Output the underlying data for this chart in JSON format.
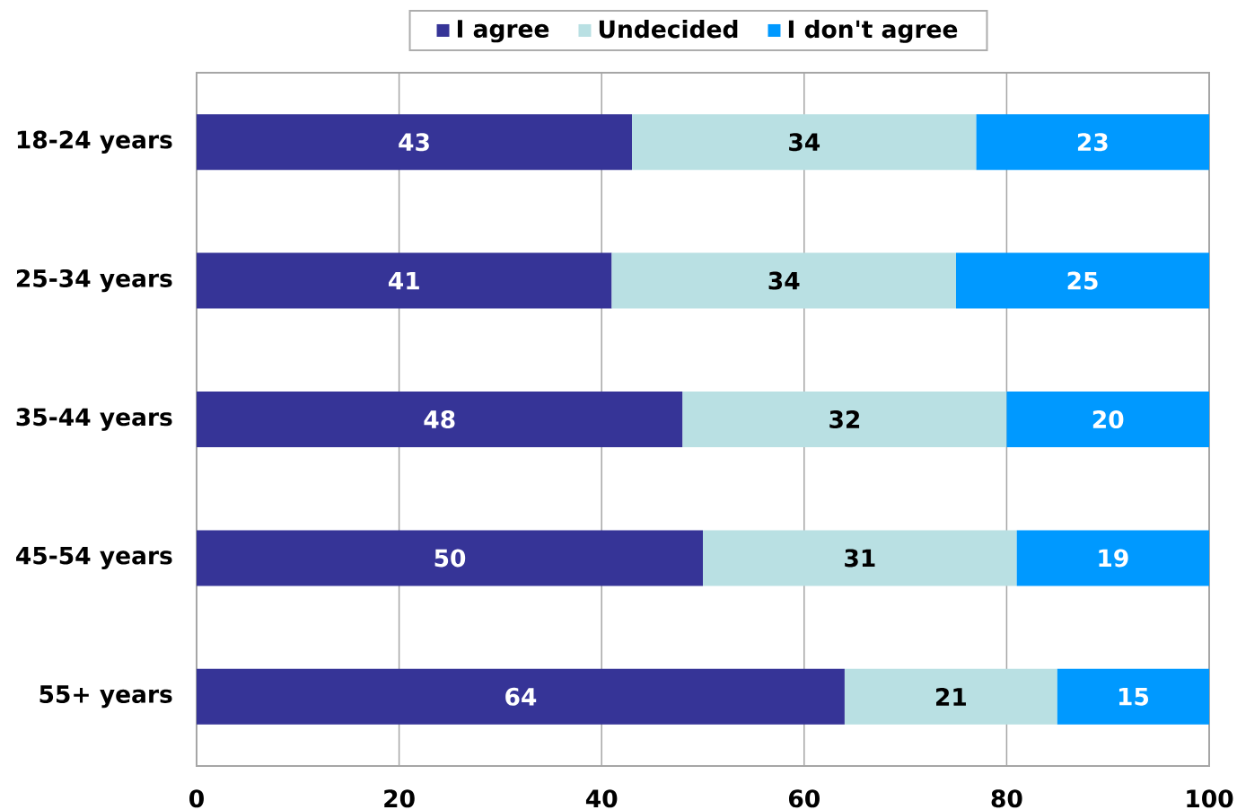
{
  "chart_data": {
    "type": "bar",
    "orientation": "horizontal",
    "stacked": true,
    "categories": [
      "18-24 years",
      "25-34 years",
      "35-44 years",
      "45-54 years",
      "55+ years"
    ],
    "series": [
      {
        "name": "I agree",
        "color": "#363497",
        "values": [
          43,
          41,
          48,
          50,
          64
        ]
      },
      {
        "name": "Undecided",
        "color": "#b9e0e3",
        "values": [
          34,
          34,
          32,
          31,
          21
        ]
      },
      {
        "name": "I don't agree",
        "color": "#0099ff",
        "values": [
          23,
          25,
          20,
          19,
          15
        ]
      }
    ],
    "xlim": [
      0,
      100
    ],
    "xticks": [
      0,
      20,
      40,
      60,
      80,
      100
    ],
    "grid": "x",
    "legend": "top",
    "data_labels": true
  }
}
